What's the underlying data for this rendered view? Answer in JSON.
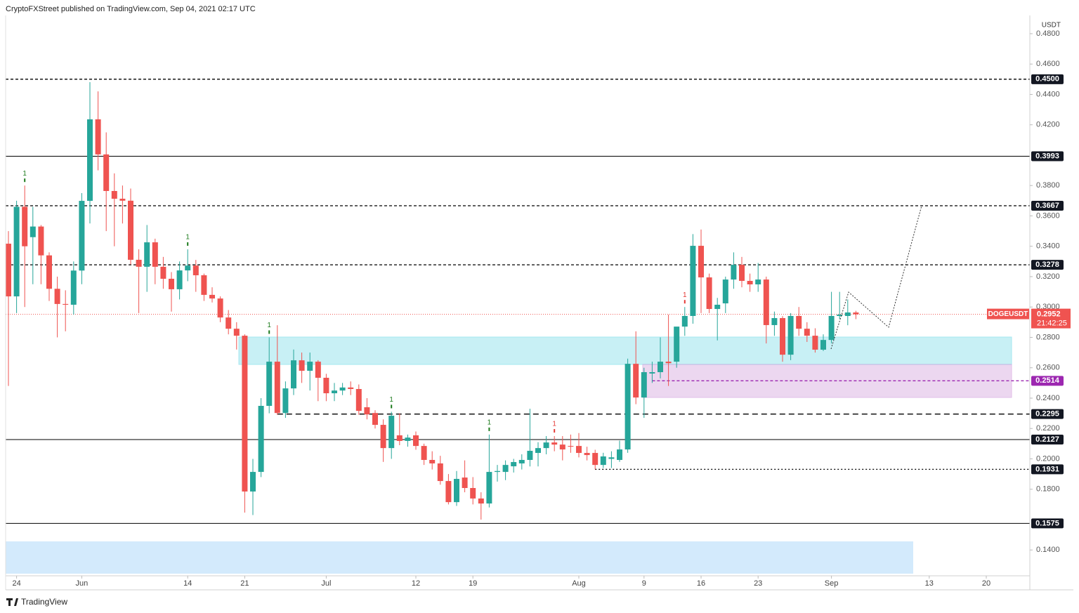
{
  "chart_data": {
    "type": "candlestick",
    "header": "CryptoFXStreet published on TradingView.com, Sep 04, 2021 02:17 UTC",
    "currency": "USDT",
    "brand": "TradingView",
    "symbol": "DOGEUSDT",
    "countdown": "21:42:25",
    "last_price": {
      "value": 0.2952,
      "label": "0.2952"
    },
    "up_color": "#26a69a",
    "down_color": "#ef5350",
    "xlim": [
      "2021-05-23",
      "2021-09-25"
    ],
    "ylim": [
      0.123,
      0.492
    ],
    "xticks": [
      {
        "value": "2021-05-24",
        "label": "24"
      },
      {
        "value": "2021-06-01",
        "label": "Jun"
      },
      {
        "value": "2021-06-14",
        "label": "14"
      },
      {
        "value": "2021-06-21",
        "label": "21"
      },
      {
        "value": "2021-07-01",
        "label": "Jul"
      },
      {
        "value": "2021-07-12",
        "label": "12"
      },
      {
        "value": "2021-07-19",
        "label": "19"
      },
      {
        "value": "2021-08-01",
        "label": "Aug"
      },
      {
        "value": "2021-08-09",
        "label": "9"
      },
      {
        "value": "2021-08-16",
        "label": "16"
      },
      {
        "value": "2021-08-23",
        "label": "23"
      },
      {
        "value": "2021-09-01",
        "label": "Sep"
      },
      {
        "value": "2021-09-13",
        "label": "13"
      },
      {
        "value": "2021-09-20",
        "label": "20"
      }
    ],
    "yticks": [
      {
        "value": 0.48,
        "label": "0.4800"
      },
      {
        "value": 0.46,
        "label": "0.4600"
      },
      {
        "value": 0.44,
        "label": "0.4400"
      },
      {
        "value": 0.42,
        "label": "0.4200"
      },
      {
        "value": 0.38,
        "label": "0.3800"
      },
      {
        "value": 0.36,
        "label": "0.3600"
      },
      {
        "value": 0.34,
        "label": "0.3400"
      },
      {
        "value": 0.32,
        "label": "0.3200"
      },
      {
        "value": 0.3,
        "label": "0.3000"
      },
      {
        "value": 0.28,
        "label": "0.2800"
      },
      {
        "value": 0.26,
        "label": "0.2600"
      },
      {
        "value": 0.24,
        "label": "0.2400"
      },
      {
        "value": 0.22,
        "label": "0.2200"
      },
      {
        "value": 0.2,
        "label": "0.2000"
      },
      {
        "value": 0.18,
        "label": "0.1800"
      },
      {
        "value": 0.14,
        "label": "0.1400"
      }
    ],
    "levels": [
      {
        "value": 0.45,
        "label": "0.4500",
        "style": "dashed",
        "color": "#000000"
      },
      {
        "value": 0.3993,
        "label": "0.3993",
        "style": "solid",
        "color": "#000000"
      },
      {
        "value": 0.3667,
        "label": "0.3667",
        "style": "dashed",
        "color": "#000000"
      },
      {
        "value": 0.3278,
        "label": "0.3278",
        "style": "dashed",
        "color": "#000000"
      },
      {
        "value": 0.2514,
        "label": "0.2514",
        "style": "dashed",
        "color": "#9c27b0",
        "start": "2021-08-10"
      },
      {
        "value": 0.2295,
        "label": "0.2295",
        "style": "longdash",
        "color": "#000000",
        "start": "2021-06-25"
      },
      {
        "value": 0.2127,
        "label": "0.2127",
        "style": "solid",
        "color": "#000000"
      },
      {
        "value": 0.1931,
        "label": "0.1931",
        "style": "dotted",
        "color": "#000000",
        "start": "2021-08-03"
      },
      {
        "value": 0.1575,
        "label": "0.1575",
        "style": "solid",
        "color": "#000000"
      }
    ],
    "markers": [
      {
        "x": "2021-05-25",
        "text": "1",
        "color": "#1b7a1b"
      },
      {
        "x": "2021-06-14",
        "text": "1",
        "color": "#1b7a1b"
      },
      {
        "x": "2021-06-24",
        "text": "1",
        "color": "#1b7a1b"
      },
      {
        "x": "2021-07-09",
        "text": "1",
        "color": "#1b7a1b"
      },
      {
        "x": "2021-07-21",
        "text": "1",
        "color": "#1b7a1b"
      },
      {
        "x": "2021-07-29",
        "text": "1",
        "color": "#e53935"
      },
      {
        "x": "2021-08-14",
        "text": "1",
        "color": "#e53935"
      }
    ],
    "x": [
      "2021-05-23",
      "2021-05-24",
      "2021-05-25",
      "2021-05-26",
      "2021-05-27",
      "2021-05-28",
      "2021-05-29",
      "2021-05-30",
      "2021-05-31",
      "2021-06-01",
      "2021-06-02",
      "2021-06-03",
      "2021-06-04",
      "2021-06-05",
      "2021-06-06",
      "2021-06-07",
      "2021-06-08",
      "2021-06-09",
      "2021-06-10",
      "2021-06-11",
      "2021-06-12",
      "2021-06-13",
      "2021-06-14",
      "2021-06-15",
      "2021-06-16",
      "2021-06-17",
      "2021-06-18",
      "2021-06-19",
      "2021-06-20",
      "2021-06-21",
      "2021-06-22",
      "2021-06-23",
      "2021-06-24",
      "2021-06-25",
      "2021-06-26",
      "2021-06-27",
      "2021-06-28",
      "2021-06-29",
      "2021-06-30",
      "2021-07-01",
      "2021-07-02",
      "2021-07-03",
      "2021-07-04",
      "2021-07-05",
      "2021-07-06",
      "2021-07-07",
      "2021-07-08",
      "2021-07-09",
      "2021-07-10",
      "2021-07-11",
      "2021-07-12",
      "2021-07-13",
      "2021-07-14",
      "2021-07-15",
      "2021-07-16",
      "2021-07-17",
      "2021-07-18",
      "2021-07-19",
      "2021-07-20",
      "2021-07-21",
      "2021-07-22",
      "2021-07-23",
      "2021-07-24",
      "2021-07-25",
      "2021-07-26",
      "2021-07-27",
      "2021-07-28",
      "2021-07-29",
      "2021-07-30",
      "2021-07-31",
      "2021-08-01",
      "2021-08-02",
      "2021-08-03",
      "2021-08-04",
      "2021-08-05",
      "2021-08-06",
      "2021-08-07",
      "2021-08-08",
      "2021-08-09",
      "2021-08-10",
      "2021-08-11",
      "2021-08-12",
      "2021-08-13",
      "2021-08-14",
      "2021-08-15",
      "2021-08-16",
      "2021-08-17",
      "2021-08-18",
      "2021-08-19",
      "2021-08-20",
      "2021-08-21",
      "2021-08-22",
      "2021-08-23",
      "2021-08-24",
      "2021-08-25",
      "2021-08-26",
      "2021-08-27",
      "2021-08-28",
      "2021-08-29",
      "2021-08-30",
      "2021-08-31",
      "2021-09-01",
      "2021-09-02",
      "2021-09-03",
      "2021-09-04"
    ],
    "open": [
      0.3417,
      0.307,
      0.366,
      0.346,
      0.353,
      0.334,
      0.312,
      0.302,
      0.3015,
      0.324,
      0.3699,
      0.4236,
      0.4005,
      0.3764,
      0.3713,
      0.37,
      0.3311,
      0.3265,
      0.3426,
      0.3265,
      0.3186,
      0.3117,
      0.3241,
      0.3273,
      0.3209,
      0.308,
      0.3056,
      0.2931,
      0.2857,
      0.2811,
      0.1785,
      0.1914,
      0.2349,
      0.264,
      0.2302,
      0.2464,
      0.2649,
      0.258,
      0.264,
      0.2534,
      0.2432,
      0.245,
      0.247,
      0.246,
      0.234,
      0.2302,
      0.2224,
      0.2071,
      0.2155,
      0.2118,
      0.2155,
      0.2085,
      0.1993,
      0.197,
      0.1854,
      0.1715,
      0.1877,
      0.1808,
      0.1739,
      0.1706,
      0.1914,
      0.1914,
      0.1951,
      0.197,
      0.1993,
      0.2039,
      0.2071,
      0.2108,
      0.2094,
      0.2085,
      0.2085,
      0.2039,
      0.2039,
      0.196,
      0.2,
      0.1993,
      0.2062,
      0.2626,
      0.2404,
      0.2562,
      0.2571,
      0.264,
      0.264,
      0.2871,
      0.2941,
      0.3403,
      0.3195,
      0.2987,
      0.3024,
      0.3181,
      0.3278,
      0.3172,
      0.3149,
      0.3181,
      0.2881,
      0.2927,
      0.2686,
      0.2941,
      0.2857,
      0.2811,
      0.2719,
      0.2783,
      0.2941,
      0.2941,
      0.2964
    ],
    "high": [
      0.35,
      0.37,
      0.38,
      0.366,
      0.354,
      0.336,
      0.32,
      0.311,
      0.33,
      0.375,
      0.4481,
      0.442,
      0.415,
      0.388,
      0.38,
      0.378,
      0.338,
      0.354,
      0.345,
      0.333,
      0.323,
      0.33,
      0.338,
      0.331,
      0.322,
      0.313,
      0.307,
      0.298,
      0.29,
      0.282,
      0.2,
      0.24,
      0.28,
      0.288,
      0.251,
      0.272,
      0.27,
      0.27,
      0.265,
      0.256,
      0.25,
      0.25,
      0.251,
      0.249,
      0.24,
      0.232,
      0.226,
      0.231,
      0.23,
      0.216,
      0.218,
      0.21,
      0.205,
      0.202,
      0.19,
      0.192,
      0.199,
      0.188,
      0.178,
      0.216,
      0.196,
      0.199,
      0.2,
      0.203,
      0.233,
      0.211,
      0.215,
      0.215,
      0.215,
      0.216,
      0.217,
      0.208,
      0.206,
      0.204,
      0.205,
      0.212,
      0.266,
      0.284,
      0.26,
      0.264,
      0.28,
      0.295,
      0.286,
      0.3,
      0.348,
      0.351,
      0.322,
      0.306,
      0.32,
      0.336,
      0.333,
      0.322,
      0.329,
      0.32,
      0.297,
      0.294,
      0.296,
      0.3,
      0.29,
      0.286,
      0.282,
      0.31,
      0.31,
      0.305,
      0.2975
    ],
    "low": [
      0.248,
      0.296,
      0.3,
      0.315,
      0.315,
      0.304,
      0.28,
      0.284,
      0.295,
      0.315,
      0.355,
      0.39,
      0.35,
      0.34,
      0.355,
      0.328,
      0.296,
      0.31,
      0.315,
      0.312,
      0.297,
      0.305,
      0.317,
      0.31,
      0.304,
      0.303,
      0.29,
      0.282,
      0.272,
      0.1646,
      0.163,
      0.188,
      0.23,
      0.229,
      0.227,
      0.242,
      0.25,
      0.245,
      0.238,
      0.238,
      0.238,
      0.242,
      0.242,
      0.229,
      0.226,
      0.22,
      0.198,
      0.2,
      0.209,
      0.208,
      0.206,
      0.196,
      0.193,
      0.183,
      0.17,
      0.169,
      0.178,
      0.17,
      0.16,
      0.168,
      0.185,
      0.186,
      0.191,
      0.193,
      0.195,
      0.195,
      0.203,
      0.205,
      0.199,
      0.204,
      0.201,
      0.199,
      0.1931,
      0.194,
      0.194,
      0.198,
      0.204,
      0.236,
      0.227,
      0.25,
      0.253,
      0.248,
      0.26,
      0.281,
      0.289,
      0.296,
      0.296,
      0.278,
      0.296,
      0.312,
      0.313,
      0.31,
      0.31,
      0.276,
      0.281,
      0.264,
      0.265,
      0.281,
      0.277,
      0.27,
      0.271,
      0.276,
      0.292,
      0.288,
      0.292
    ],
    "close": [
      0.307,
      0.366,
      0.34,
      0.353,
      0.334,
      0.312,
      0.302,
      0.3015,
      0.324,
      0.3699,
      0.4236,
      0.4005,
      0.3764,
      0.3713,
      0.37,
      0.3311,
      0.3265,
      0.3426,
      0.3265,
      0.3186,
      0.3117,
      0.3241,
      0.3273,
      0.3209,
      0.308,
      0.3056,
      0.2931,
      0.2857,
      0.2811,
      0.1785,
      0.1914,
      0.2349,
      0.264,
      0.2302,
      0.2464,
      0.2649,
      0.258,
      0.264,
      0.2534,
      0.2432,
      0.245,
      0.247,
      0.246,
      0.2316,
      0.2293,
      0.2224,
      0.2071,
      0.2284,
      0.2118,
      0.214,
      0.2085,
      0.1993,
      0.197,
      0.1854,
      0.1715,
      0.1868,
      0.1808,
      0.1739,
      0.1706,
      0.1914,
      0.192,
      0.196,
      0.1979,
      0.1993,
      0.2053,
      0.2071,
      0.2108,
      0.2094,
      0.2062,
      0.208,
      0.2039,
      0.2025,
      0.196,
      0.2016,
      0.201,
      0.2062,
      0.2626,
      0.2404,
      0.2571,
      0.2571,
      0.264,
      0.263,
      0.2871,
      0.2941,
      0.3403,
      0.3195,
      0.2987,
      0.3015,
      0.3181,
      0.3278,
      0.3172,
      0.3149,
      0.3181,
      0.2881,
      0.2927,
      0.2686,
      0.2941,
      0.2857,
      0.2811,
      0.2719,
      0.2783,
      0.2941,
      0.295,
      0.2964,
      0.2952
    ]
  }
}
